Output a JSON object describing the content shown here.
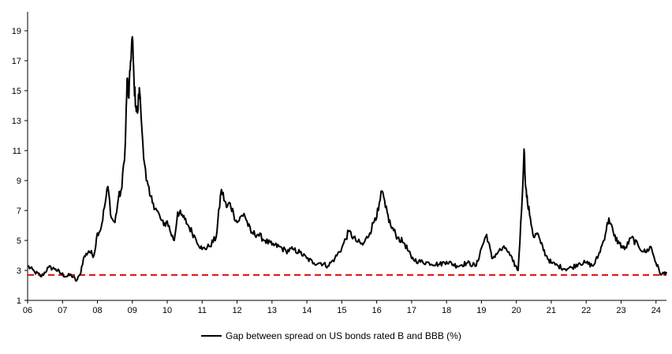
{
  "chart_data": {
    "type": "line",
    "title": "",
    "xlabel": "",
    "ylabel": "",
    "ylim": [
      1,
      20
    ],
    "y_ticks": [
      "1",
      "3",
      "5",
      "7",
      "9",
      "11",
      "13",
      "15",
      "17",
      "19"
    ],
    "x_range": [
      2006.0,
      2024.3
    ],
    "x_ticks": [
      "06",
      "07",
      "08",
      "09",
      "10",
      "11",
      "12",
      "13",
      "14",
      "15",
      "16",
      "17",
      "18",
      "19",
      "20",
      "21",
      "22",
      "23",
      "24"
    ],
    "grid": false,
    "legend_position": "bottom-center",
    "series": [
      {
        "name": "Gap between spread on US bonds rated B and BBB (%)",
        "color": "#000000",
        "x": [
          2006.0,
          2006.2,
          2006.4,
          2006.6,
          2006.8,
          2006.95,
          2007.1,
          2007.25,
          2007.4,
          2007.5,
          2007.6,
          2007.75,
          2007.9,
          2008.0,
          2008.1,
          2008.2,
          2008.3,
          2008.4,
          2008.5,
          2008.6,
          2008.7,
          2008.8,
          2008.85,
          2008.9,
          2008.95,
          2009.0,
          2009.05,
          2009.1,
          2009.15,
          2009.2,
          2009.3,
          2009.4,
          2009.5,
          2009.6,
          2009.7,
          2009.8,
          2009.9,
          2010.0,
          2010.1,
          2010.2,
          2010.3,
          2010.4,
          2010.5,
          2010.6,
          2010.8,
          2011.0,
          2011.2,
          2011.4,
          2011.55,
          2011.7,
          2011.8,
          2011.9,
          2012.0,
          2012.2,
          2012.4,
          2012.6,
          2012.8,
          2013.0,
          2013.2,
          2013.4,
          2013.6,
          2013.8,
          2014.0,
          2014.2,
          2014.4,
          2014.6,
          2014.8,
          2015.0,
          2015.2,
          2015.4,
          2015.6,
          2015.8,
          2015.95,
          2016.05,
          2016.15,
          2016.25,
          2016.4,
          2016.6,
          2016.8,
          2017.0,
          2017.2,
          2017.5,
          2017.8,
          2018.0,
          2018.3,
          2018.6,
          2018.85,
          2019.0,
          2019.15,
          2019.3,
          2019.5,
          2019.7,
          2019.9,
          2020.05,
          2020.15,
          2020.22,
          2020.27,
          2020.32,
          2020.4,
          2020.5,
          2020.6,
          2020.7,
          2020.85,
          2021.0,
          2021.2,
          2021.4,
          2021.6,
          2021.8,
          2022.0,
          2022.2,
          2022.35,
          2022.5,
          2022.65,
          2022.8,
          2022.95,
          2023.1,
          2023.3,
          2023.5,
          2023.7,
          2023.85,
          2024.0,
          2024.15,
          2024.3
        ],
        "values": [
          3.3,
          2.9,
          2.6,
          3.2,
          3.1,
          2.8,
          2.6,
          2.7,
          2.3,
          2.7,
          3.8,
          4.3,
          4.0,
          5.5,
          5.8,
          7.2,
          8.6,
          6.5,
          6.2,
          7.8,
          8.5,
          11.5,
          15.8,
          14.5,
          17.0,
          18.6,
          15.5,
          14.0,
          13.5,
          15.2,
          11.5,
          9.0,
          8.0,
          7.5,
          7.0,
          6.5,
          6.0,
          6.3,
          5.5,
          5.0,
          6.9,
          6.7,
          6.4,
          6.0,
          5.2,
          4.4,
          4.6,
          5.2,
          8.4,
          7.2,
          7.5,
          6.8,
          6.2,
          6.8,
          5.5,
          5.4,
          5.0,
          4.7,
          4.6,
          4.3,
          4.4,
          4.2,
          3.8,
          3.5,
          3.5,
          3.3,
          3.8,
          4.5,
          5.6,
          5.0,
          4.7,
          5.5,
          6.5,
          7.0,
          8.3,
          7.2,
          6.0,
          5.2,
          4.8,
          3.8,
          3.6,
          3.5,
          3.4,
          3.6,
          3.3,
          3.5,
          3.3,
          4.5,
          5.4,
          3.8,
          4.3,
          4.5,
          3.6,
          3.0,
          7.0,
          11.1,
          8.5,
          7.5,
          6.5,
          5.2,
          5.5,
          4.8,
          4.0,
          3.5,
          3.3,
          3.1,
          3.2,
          3.5,
          3.5,
          3.3,
          4.0,
          5.0,
          6.5,
          5.3,
          4.8,
          4.4,
          5.2,
          4.6,
          4.2,
          4.6,
          3.5,
          2.7,
          2.9
        ]
      }
    ],
    "reference_lines": [
      {
        "value": 2.7,
        "color": "#e00000",
        "style": "dashed"
      }
    ]
  }
}
